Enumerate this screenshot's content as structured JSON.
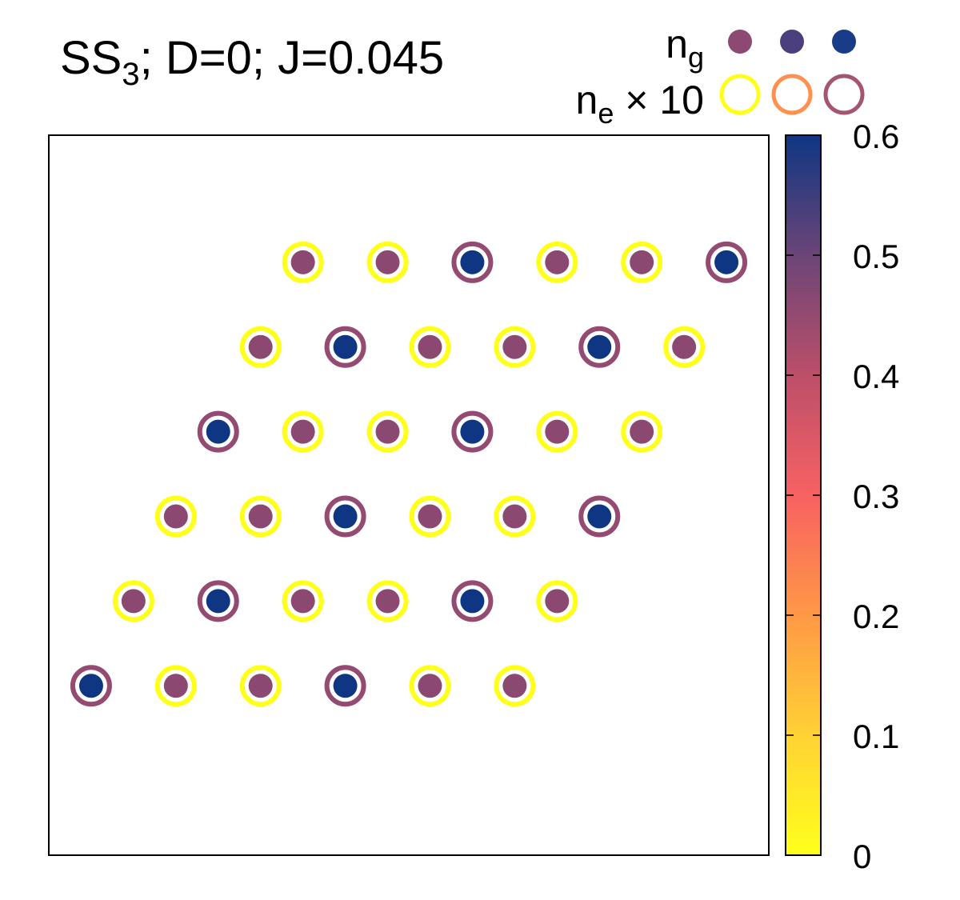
{
  "title": {
    "main": "SS",
    "sub": "3",
    "rest": "; D=0; J=0.045"
  },
  "legend": {
    "ng_label": "n",
    "ng_sub": "g",
    "ne_label": "n",
    "ne_sub": "e",
    "ne_suffix": " × 10",
    "ng_colors": [
      "#8c4a72",
      "#4b3f7e",
      "#183c88"
    ],
    "ne_colors": [
      "#ffff1c",
      "#ff9050",
      "#a55472"
    ]
  },
  "chart_data": {
    "type": "scatter",
    "description_kind": "lattice of sites with filled dots (n_g) and rings (n_e x 10)",
    "x": {
      "range": [
        0,
        8.5
      ],
      "tick_labels": []
    },
    "y": {
      "range": [
        0,
        8.5
      ],
      "tick_labels": []
    },
    "colorbar": {
      "min": 0,
      "max": 0.6,
      "ticks": [
        0,
        0.1,
        0.2,
        0.3,
        0.4,
        0.5,
        0.6
      ],
      "tick_labels": [
        "0",
        "0.1",
        "0.2",
        "0.3",
        "0.4",
        "0.5",
        "0.6"
      ],
      "stops": [
        {
          "v": 0.0,
          "c": "#ffff1c"
        },
        {
          "v": 0.1,
          "c": "#ffd234"
        },
        {
          "v": 0.2,
          "c": "#ff9846"
        },
        {
          "v": 0.3,
          "c": "#f76161"
        },
        {
          "v": 0.4,
          "c": "#bc4f6a"
        },
        {
          "v": 0.5,
          "c": "#6b4577"
        },
        {
          "v": 0.6,
          "c": "#0f3683"
        }
      ]
    },
    "rows": [
      {
        "y": 2,
        "x_start": 0.5,
        "types": [
          "B",
          "P",
          "P",
          "B",
          "P",
          "P"
        ]
      },
      {
        "y": 3,
        "x_start": 1.0,
        "types": [
          "P",
          "B",
          "P",
          "P",
          "B",
          "P"
        ]
      },
      {
        "y": 4,
        "x_start": 1.5,
        "types": [
          "P",
          "P",
          "B",
          "P",
          "P",
          "B"
        ]
      },
      {
        "y": 5,
        "x_start": 2.0,
        "types": [
          "B",
          "P",
          "P",
          "B",
          "P",
          "P"
        ]
      },
      {
        "y": 6,
        "x_start": 2.5,
        "types": [
          "P",
          "B",
          "P",
          "P",
          "B",
          "P"
        ]
      },
      {
        "y": 7,
        "x_start": 3.0,
        "types": [
          "P",
          "P",
          "B",
          "P",
          "P",
          "B"
        ]
      }
    ],
    "site_types": {
      "P": {
        "ng": 0.46,
        "ne_x10": 0.0
      },
      "B": {
        "ng": 0.6,
        "ne_x10": 0.45
      }
    },
    "grid": false,
    "legend_position": "top-right"
  }
}
